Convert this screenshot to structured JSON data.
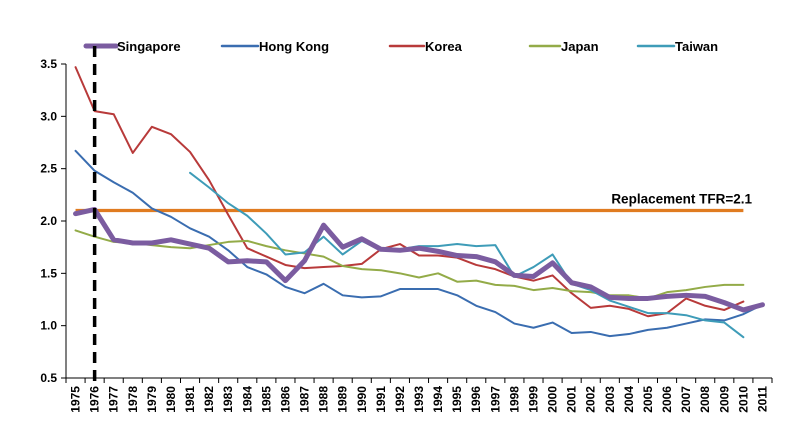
{
  "chart_data": {
    "type": "line",
    "title": "",
    "xlabel": "",
    "ylabel": "",
    "ylim": [
      0.5,
      3.5
    ],
    "yticks": [
      "0.5",
      "1.0",
      "1.5",
      "2.0",
      "2.5",
      "3.0",
      "3.5"
    ],
    "grid": false,
    "legend": "top",
    "x": [
      "1975",
      "1976",
      "1977",
      "1978",
      "1979",
      "1980",
      "1981",
      "1982",
      "1983",
      "1984",
      "1985",
      "1986",
      "1987",
      "1988",
      "1989",
      "1990",
      "1991",
      "1992",
      "1993",
      "1994",
      "1995",
      "1996",
      "1997",
      "1998",
      "1999",
      "2000",
      "2001",
      "2002",
      "2003",
      "2004",
      "2005",
      "2006",
      "2007",
      "2008",
      "2009",
      "2010",
      "2011"
    ],
    "series": [
      {
        "name": "Singapore",
        "color": "#7B5CA0",
        "width": 5,
        "values": [
          2.07,
          2.11,
          1.82,
          1.79,
          1.79,
          1.82,
          1.78,
          1.74,
          1.61,
          1.62,
          1.61,
          1.43,
          1.62,
          1.96,
          1.75,
          1.83,
          1.73,
          1.72,
          1.74,
          1.71,
          1.67,
          1.66,
          1.61,
          1.48,
          1.47,
          1.6,
          1.41,
          1.37,
          1.27,
          1.26,
          1.26,
          1.28,
          1.29,
          1.28,
          1.22,
          1.15,
          1.2
        ]
      },
      {
        "name": "Hong Kong",
        "color": "#3A6DB0",
        "width": 2,
        "values": [
          2.67,
          2.48,
          2.37,
          2.27,
          2.12,
          2.04,
          1.93,
          1.85,
          1.72,
          1.56,
          1.49,
          1.37,
          1.31,
          1.4,
          1.29,
          1.27,
          1.28,
          1.35,
          1.35,
          1.35,
          1.29,
          1.19,
          1.13,
          1.02,
          0.98,
          1.03,
          0.93,
          0.94,
          0.9,
          0.92,
          0.96,
          0.98,
          1.02,
          1.06,
          1.05,
          1.11,
          1.2
        ]
      },
      {
        "name": "Korea",
        "color": "#B83A3A",
        "width": 2,
        "values": [
          3.47,
          3.05,
          3.02,
          2.65,
          2.9,
          2.83,
          2.66,
          2.39,
          2.06,
          1.74,
          1.66,
          1.58,
          1.55,
          1.56,
          1.57,
          1.59,
          1.73,
          1.78,
          1.67,
          1.67,
          1.65,
          1.58,
          1.54,
          1.47,
          1.43,
          1.48,
          1.31,
          1.17,
          1.19,
          1.16,
          1.09,
          1.12,
          1.26,
          1.19,
          1.15,
          1.23,
          null
        ]
      },
      {
        "name": "Japan",
        "color": "#93AB48",
        "width": 2,
        "values": [
          1.91,
          1.85,
          1.8,
          1.79,
          1.77,
          1.75,
          1.74,
          1.77,
          1.8,
          1.81,
          1.76,
          1.72,
          1.69,
          1.66,
          1.57,
          1.54,
          1.53,
          1.5,
          1.46,
          1.5,
          1.42,
          1.43,
          1.39,
          1.38,
          1.34,
          1.36,
          1.33,
          1.32,
          1.29,
          1.29,
          1.26,
          1.32,
          1.34,
          1.37,
          1.39,
          1.39,
          null
        ]
      },
      {
        "name": "Taiwan",
        "color": "#3E9CB8",
        "width": 2,
        "values": [
          null,
          null,
          null,
          null,
          null,
          null,
          2.46,
          2.32,
          2.17,
          2.05,
          1.88,
          1.68,
          1.7,
          1.85,
          1.68,
          1.81,
          1.72,
          1.73,
          1.76,
          1.76,
          1.78,
          1.76,
          1.77,
          1.47,
          1.56,
          1.68,
          1.4,
          1.34,
          1.24,
          1.18,
          1.12,
          1.12,
          1.1,
          1.05,
          1.03,
          0.89,
          null
        ]
      }
    ],
    "reference_line": {
      "label": "Replacement TFR=2.1",
      "value": 2.1,
      "color": "#E07B20"
    },
    "vertical_marker": {
      "x": "1976",
      "style": "dashed",
      "color": "#000000"
    }
  }
}
